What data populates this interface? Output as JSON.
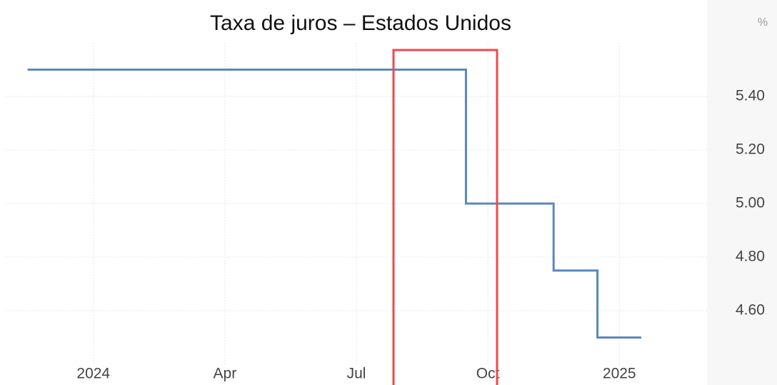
{
  "chart_data": {
    "type": "line",
    "title": "Taxa de juros – Estados Unidos",
    "unit": "%",
    "step": "post",
    "x": [
      "2023-11",
      "2024-09",
      "2024-11",
      "2024-12",
      "2025-01"
    ],
    "series": [
      {
        "name": "Taxa de juros",
        "color": "#5b87c0",
        "values": [
          5.5,
          5.0,
          4.75,
          4.5,
          4.5
        ]
      }
    ],
    "xlim": [
      "2023-11",
      "2025-03"
    ],
    "xticks": [
      {
        "value": "2024-01",
        "label": "2024"
      },
      {
        "value": "2024-04",
        "label": "Apr"
      },
      {
        "value": "2024-07",
        "label": "Jul"
      },
      {
        "value": "2024-10",
        "label": "Oct"
      },
      {
        "value": "2025-01",
        "label": "2025"
      }
    ],
    "ylim": [
      4.4,
      5.6
    ],
    "yticks": [
      {
        "value": 4.6,
        "label": "4.60"
      },
      {
        "value": 4.8,
        "label": "4.80"
      },
      {
        "value": 5.0,
        "label": "5.00"
      },
      {
        "value": 5.2,
        "label": "5.20"
      },
      {
        "value": 5.4,
        "label": "5.40"
      }
    ],
    "grid": true
  }
}
